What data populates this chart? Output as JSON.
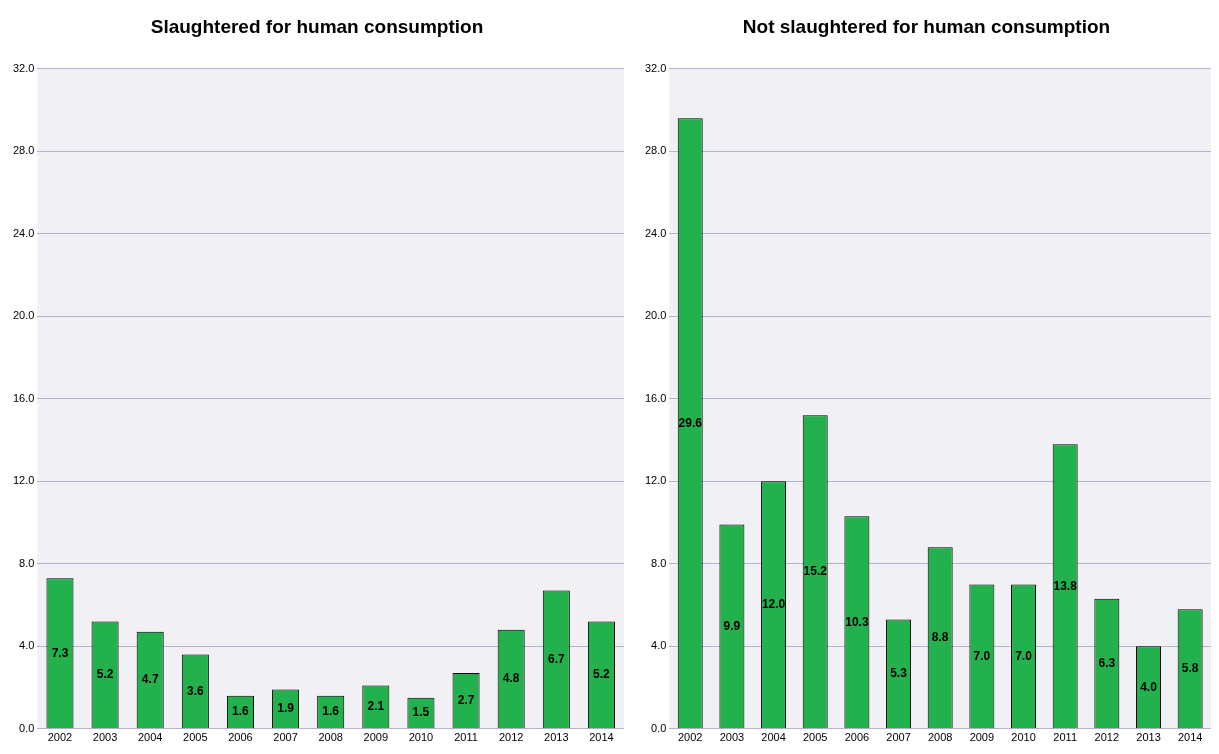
{
  "chart_data": [
    {
      "type": "bar",
      "title": "Slaughtered for human consumption",
      "categories": [
        "2002",
        "2003",
        "2004",
        "2005",
        "2006",
        "2007",
        "2008",
        "2009",
        "2010",
        "2011",
        "2012",
        "2013",
        "2014"
      ],
      "values": [
        7.3,
        5.2,
        4.7,
        3.6,
        1.6,
        1.9,
        1.6,
        2.1,
        1.5,
        2.7,
        4.8,
        6.7,
        5.2
      ],
      "value_labels": [
        "7.3",
        "5.2",
        "4.7",
        "3.6",
        "1.6",
        "1.9",
        "1.6",
        "2.1",
        "1.5",
        "2.7",
        "4.8",
        "6.7",
        "5.2"
      ],
      "color": "#22b14c",
      "ylim": [
        0,
        32
      ],
      "yticks": [
        {
          "value": 0,
          "label": "0.0"
        },
        {
          "value": 4,
          "label": "4.0"
        },
        {
          "value": 8,
          "label": "8.0"
        },
        {
          "value": 12,
          "label": "12.0"
        },
        {
          "value": 16,
          "label": "16.0"
        },
        {
          "value": 20,
          "label": "20.0"
        },
        {
          "value": 24,
          "label": "24.0"
        },
        {
          "value": 28,
          "label": "28.0"
        },
        {
          "value": 32,
          "label": "32.0"
        }
      ],
      "grid": "y",
      "legend": false
    },
    {
      "type": "bar",
      "title": "Not slaughtered for human consumption",
      "categories": [
        "2002",
        "2003",
        "2004",
        "2005",
        "2006",
        "2007",
        "2008",
        "2009",
        "2010",
        "2011",
        "2012",
        "2013",
        "2014"
      ],
      "values": [
        29.6,
        9.9,
        12.0,
        15.2,
        10.3,
        5.3,
        8.8,
        7.0,
        7.0,
        13.8,
        6.3,
        4.0,
        5.8
      ],
      "value_labels": [
        "29.6",
        "9.9",
        "12.0",
        "15.2",
        "10.3",
        "5.3",
        "8.8",
        "7.0",
        "7.0",
        "13.8",
        "6.3",
        "4.0",
        "5.8"
      ],
      "color": "#22b14c",
      "ylim": [
        0,
        32
      ],
      "yticks": [
        {
          "value": 0,
          "label": "0.0"
        },
        {
          "value": 4,
          "label": "4.0"
        },
        {
          "value": 8,
          "label": "8.0"
        },
        {
          "value": 12,
          "label": "12.0"
        },
        {
          "value": 16,
          "label": "16.0"
        },
        {
          "value": 20,
          "label": "20.0"
        },
        {
          "value": 24,
          "label": "24.0"
        },
        {
          "value": 28,
          "label": "28.0"
        },
        {
          "value": 32,
          "label": "32.0"
        }
      ],
      "grid": "y",
      "legend": false
    }
  ]
}
